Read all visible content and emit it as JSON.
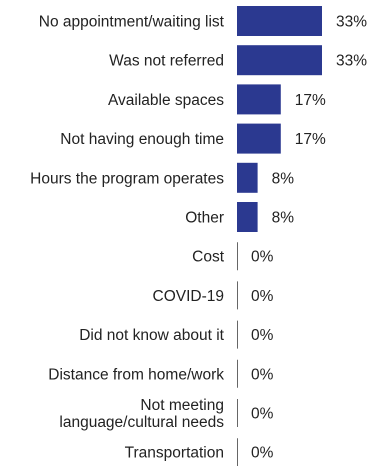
{
  "chart_data": {
    "type": "bar",
    "orientation": "horizontal",
    "categories": [
      [
        "No appointment/waiting list"
      ],
      [
        "Was not referred"
      ],
      [
        "Available spaces"
      ],
      [
        "Not having enough time"
      ],
      [
        "Hours the program operates"
      ],
      [
        "Other"
      ],
      [
        "Cost"
      ],
      [
        "COVID-19"
      ],
      [
        "Did not know about it"
      ],
      [
        "Distance from home/work"
      ],
      [
        "Not meeting",
        "language/cultural needs"
      ],
      [
        "Transportation"
      ]
    ],
    "values": [
      33,
      33,
      17,
      17,
      8,
      8,
      0,
      0,
      0,
      0,
      0,
      0
    ],
    "value_labels": [
      "33%",
      "33%",
      "17%",
      "17%",
      "8%",
      "8%",
      "0%",
      "0%",
      "0%",
      "0%",
      "0%",
      "0%"
    ],
    "title": "",
    "xlabel": "",
    "ylabel": "",
    "xlim": [
      0,
      33
    ],
    "bar_color": "#2b3990",
    "axis_color": "#666666",
    "grid": false,
    "legend": false
  }
}
